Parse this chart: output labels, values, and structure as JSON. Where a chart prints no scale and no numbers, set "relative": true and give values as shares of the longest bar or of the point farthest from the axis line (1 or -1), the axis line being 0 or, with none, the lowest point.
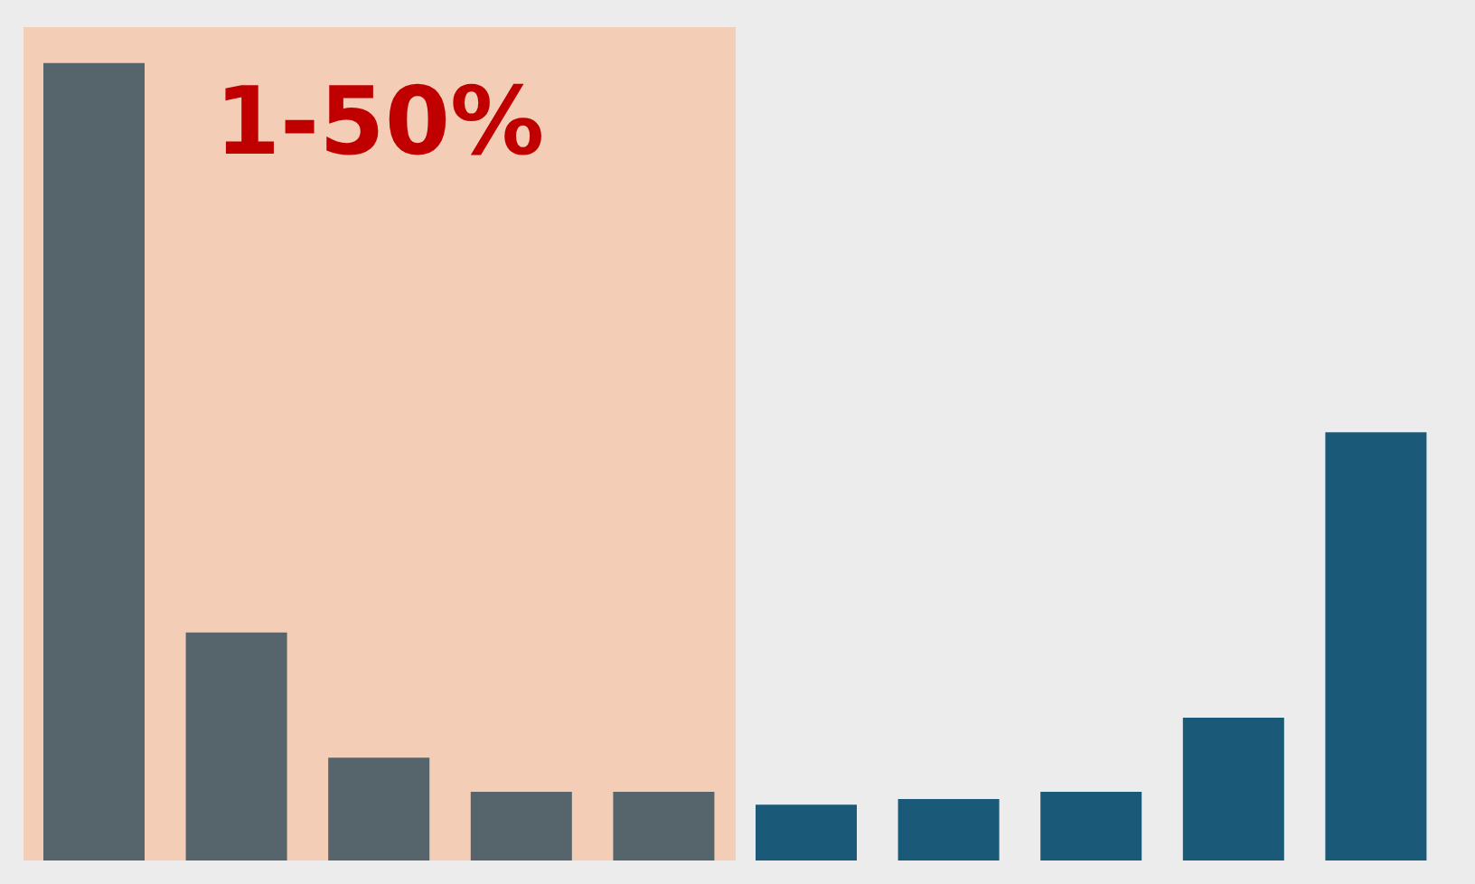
{
  "chart_data": {
    "type": "bar",
    "relative": true,
    "categories": [
      null,
      null,
      null,
      null,
      null,
      null,
      null,
      null,
      null,
      null
    ],
    "values": [
      1,
      0.286,
      0.129,
      0.086,
      0.086,
      0.07,
      0.077,
      0.086,
      0.179,
      0.537
    ],
    "colors": [
      "#56646b",
      "#56646b",
      "#56646b",
      "#56646b",
      "#56646b",
      "#1a5a78",
      "#1a5a78",
      "#1a5a78",
      "#1a5a78",
      "#1a5a78"
    ],
    "annotations": [
      "1-50%"
    ],
    "grid": false,
    "legend": false
  }
}
